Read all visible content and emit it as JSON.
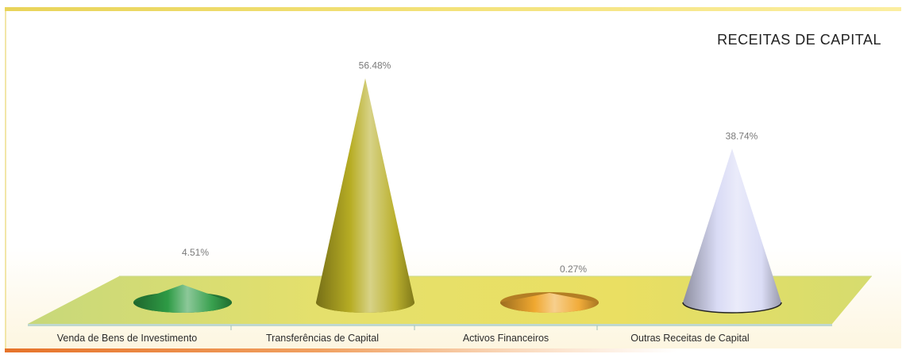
{
  "chart_data": {
    "type": "bar",
    "subtype": "3d-cone",
    "title": "RECEITAS DE CAPITAL",
    "categories": [
      "Venda de Bens de Investimento",
      "Transferências de Capital",
      "Activos Financeiros",
      "Outras Receitas de Capital"
    ],
    "values": [
      4.51,
      56.48,
      0.27,
      38.74
    ],
    "data_labels": [
      "4.51%",
      "56.48%",
      "0.27%",
      "38.74%"
    ],
    "unit": "%",
    "ylim": [
      0,
      60
    ],
    "grid": false,
    "legend": "none",
    "colors": [
      "#2e9b45",
      "#b7ad24",
      "#f0a830",
      "#d9dbf5"
    ]
  }
}
